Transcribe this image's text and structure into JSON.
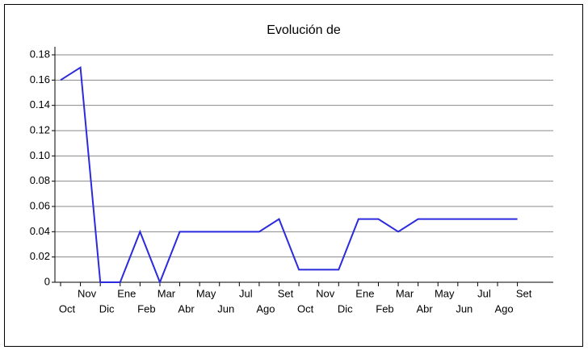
{
  "chart_data": {
    "type": "line",
    "title": "Evolución de",
    "categories": [
      "Oct",
      "Nov",
      "Dic",
      "Ene",
      "Feb",
      "Mar",
      "Abr",
      "May",
      "Jun",
      "Jul",
      "Ago",
      "Set",
      "Oct",
      "Nov",
      "Dic",
      "Ene",
      "Feb",
      "Mar",
      "Abr",
      "May",
      "Jun",
      "Jul",
      "Ago",
      "Set"
    ],
    "series": [
      {
        "color": "#2b2bdd",
        "values": [
          0.16,
          0.17,
          0,
          0,
          0.04,
          0,
          0.04,
          0.04,
          0.04,
          0.04,
          0.04,
          0.05,
          0.01,
          0.01,
          0.01,
          0.05,
          0.05,
          0.04,
          0.05,
          0.05,
          0.05,
          0.05,
          0.05,
          0.05
        ]
      }
    ],
    "ylim": [
      0,
      0.18
    ],
    "yticks": [
      0,
      0.02,
      0.04,
      0.06,
      0.08,
      {
        "value": 0.1,
        "label": "0.10"
      },
      0.12,
      0.14,
      0.16,
      0.18
    ],
    "grid": true
  }
}
